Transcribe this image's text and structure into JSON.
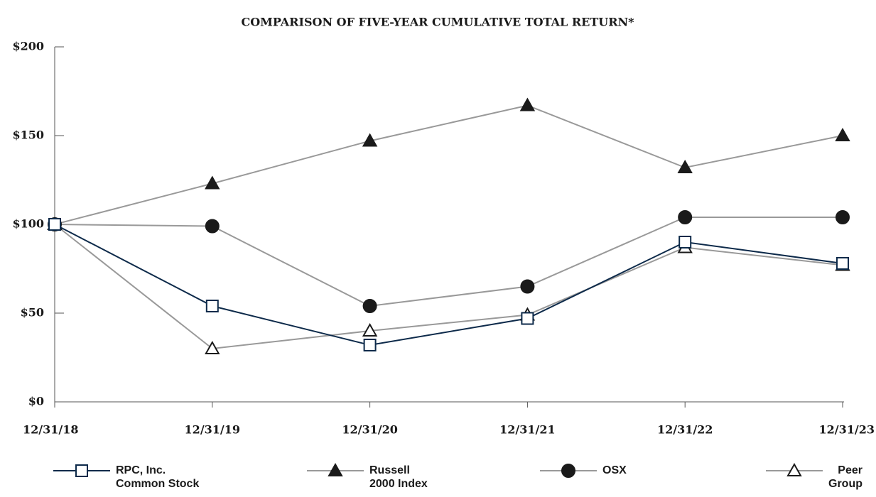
{
  "chart_data": {
    "type": "line",
    "title": "COMPARISON OF FIVE-YEAR CUMULATIVE TOTAL RETURN*",
    "categories": [
      "12/31/18",
      "12/31/19",
      "12/31/20",
      "12/31/21",
      "12/31/22",
      "12/31/23"
    ],
    "ylim": [
      0,
      200
    ],
    "yticks": [
      {
        "value": 0,
        "label": "$0"
      },
      {
        "value": 50,
        "label": "$50"
      },
      {
        "value": 100,
        "label": "$100"
      },
      {
        "value": 150,
        "label": "$150"
      },
      {
        "value": 200,
        "label": "$200"
      }
    ],
    "grid": false,
    "legend": "bottom",
    "series": [
      {
        "name": "RPC, Inc. Common Stock",
        "color": "#0d2a4a",
        "marker": "square",
        "marker_fill": "#ffffff",
        "marker_color": "#0d2a4a",
        "values": [
          100,
          54,
          32,
          47,
          90,
          78
        ]
      },
      {
        "name": "Russell 2000 Index",
        "color": "#999999",
        "marker": "triangle",
        "marker_fill": "#1a1a1a",
        "marker_color": "#1a1a1a",
        "values": [
          100,
          123,
          147,
          167,
          132,
          150
        ]
      },
      {
        "name": "OSX",
        "color": "#999999",
        "marker": "circle",
        "marker_fill": "#1a1a1a",
        "marker_color": "#1a1a1a",
        "values": [
          100,
          99,
          54,
          65,
          104,
          104
        ]
      },
      {
        "name": "Peer Group",
        "color": "#999999",
        "marker": "triangle",
        "marker_fill": "#ffffff",
        "marker_color": "#1a1a1a",
        "values": [
          100,
          30,
          40,
          49,
          87,
          77
        ]
      }
    ]
  }
}
